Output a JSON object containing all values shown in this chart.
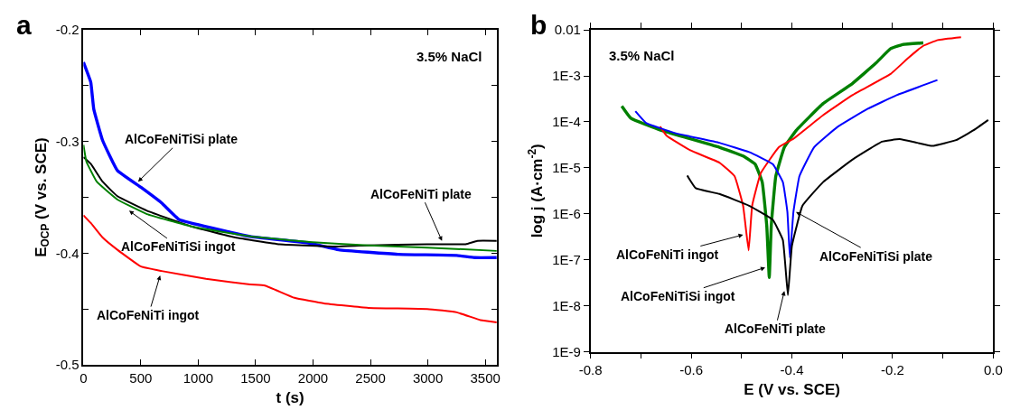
{
  "chart_data": [
    {
      "type": "line",
      "title": "a",
      "xlabel": "t (s)",
      "ylabel": "E$_{OCP}$ (V vs. SCE)",
      "xlim": [
        0,
        3600
      ],
      "xticks": [
        0,
        500,
        1000,
        1500,
        2000,
        2500,
        3000,
        3500
      ],
      "ylim": [
        -0.5,
        -0.2
      ],
      "yticks": [
        -0.5,
        {
          "value": -0.45,
          "label": null
        },
        -0.4,
        {
          "value": -0.35,
          "label": null
        },
        -0.3,
        {
          "value": -0.25,
          "label": null
        },
        -0.2
      ],
      "series": [
        {
          "color": "#0000ff",
          "x": [
            0,
            64,
            90,
            167,
            296,
            501,
            681,
            835,
            1144,
            1452,
            1967,
            2224,
            2738,
            3252,
            3406,
            3600
          ],
          "values": [
            -0.229,
            -0.247,
            -0.271,
            -0.299,
            -0.326,
            -0.341,
            -0.355,
            -0.37,
            -0.378,
            -0.385,
            -0.391,
            -0.397,
            -0.401,
            -0.402,
            -0.404,
            -0.404
          ]
        },
        {
          "color": "#000000",
          "x": [
            0,
            64,
            167,
            296,
            553,
            938,
            1324,
            1710,
            2224,
            2481,
            2995,
            3329,
            3432,
            3600
          ],
          "values": [
            -0.314,
            -0.32,
            -0.336,
            -0.349,
            -0.362,
            -0.376,
            -0.386,
            -0.392,
            -0.394,
            -0.393,
            -0.392,
            -0.392,
            -0.389,
            -0.389
          ]
        },
        {
          "color": "#008000",
          "x": [
            0,
            26,
            116,
            296,
            553,
            938,
            1452,
            1967,
            2481,
            2995,
            3600
          ],
          "values": [
            -0.303,
            -0.318,
            -0.336,
            -0.352,
            -0.365,
            -0.376,
            -0.385,
            -0.39,
            -0.393,
            -0.395,
            -0.398
          ]
        },
        {
          "color": "#ff0000",
          "x": [
            0,
            64,
            167,
            296,
            501,
            681,
            1067,
            1452,
            1581,
            1838,
            2095,
            2481,
            2995,
            3252,
            3458,
            3600
          ],
          "values": [
            -0.366,
            -0.373,
            -0.386,
            -0.397,
            -0.412,
            -0.416,
            -0.423,
            -0.428,
            -0.429,
            -0.44,
            -0.445,
            -0.449,
            -0.45,
            -0.453,
            -0.46,
            -0.462
          ]
        }
      ],
      "annotations": [
        "3.5% NaCl",
        {
          "text": "AlCoFeNiTiSi plate",
          "x": 476,
          "y": -0.336
        },
        {
          "text": "AlCoFeNiTi plate",
          "x": 3123,
          "y": -0.389
        },
        {
          "text": "AlCoFeNiTiSi ingot",
          "x": 398,
          "y": -0.362
        },
        {
          "text": "AlCoFeNiTi ingot",
          "x": 668,
          "y": -0.42
        }
      ]
    },
    {
      "type": "line",
      "title": "b",
      "xlabel": "E (V vs. SCE)",
      "ylabel": "log j (A·cm$^{-2}$)",
      "log": "y",
      "xlim": [
        -0.8,
        0
      ],
      "xticks": [
        -0.8,
        {
          "value": -0.7,
          "label": null
        },
        -0.6,
        {
          "value": -0.5,
          "label": null
        },
        -0.4,
        {
          "value": -0.3,
          "label": null
        },
        -0.2,
        {
          "value": -0.1,
          "label": null
        },
        {
          "value": 0,
          "label": "0.0"
        }
      ],
      "ylim": [
        1e-09,
        0.01
      ],
      "yticks": [
        {
          "value": 1e-09,
          "label": "1E-9"
        },
        {
          "value": 1e-08,
          "label": "1E-8"
        },
        {
          "value": 1e-07,
          "label": "1E-7"
        },
        {
          "value": 1e-06,
          "label": "1E-6"
        },
        {
          "value": 1e-05,
          "label": "1E-5"
        },
        {
          "value": 0.0001,
          "label": "1E-4"
        },
        {
          "value": 0.001,
          "label": "1E-3"
        },
        0.01
      ],
      "series": [
        {
          "color": "#008000",
          "x": [
            -0.738,
            -0.72,
            -0.661,
            -0.602,
            -0.544,
            -0.497,
            -0.473,
            -0.459,
            -0.45,
            -0.445,
            -0.441,
            -0.432,
            -0.415,
            -0.391,
            -0.338,
            -0.28,
            -0.233,
            -0.204,
            -0.18,
            -0.139
          ],
          "values": [
            0.00022,
            0.00012,
            6.6e-05,
            4.3e-05,
            2.8e-05,
            1.8e-05,
            1.2e-05,
            4.9e-06,
            5.5e-07,
            4.1e-08,
            5.5e-07,
            6.6e-06,
            2.8e-05,
            6.6e-05,
            0.00025,
            0.00068,
            0.0019,
            0.0039,
            0.0048,
            0.0052
          ]
        },
        {
          "color": "#ff0000",
          "x": [
            -0.662,
            -0.649,
            -0.602,
            -0.544,
            -0.514,
            -0.497,
            -0.486,
            -0.479,
            -0.462,
            -0.426,
            -0.397,
            -0.338,
            -0.28,
            -0.204,
            -0.168,
            -0.139,
            -0.11,
            -0.064
          ],
          "values": [
            7.9e-05,
            5e-05,
            2.4e-05,
            1.3e-05,
            6.6e-06,
            1.5e-06,
            1.6e-07,
            1.5e-06,
            7.6e-06,
            2.8e-05,
            4.3e-05,
            0.00014,
            0.00038,
            0.0011,
            0.0025,
            0.0045,
            0.006,
            0.0069
          ]
        },
        {
          "color": "#0000ff",
          "x": [
            -0.711,
            -0.69,
            -0.632,
            -0.544,
            -0.485,
            -0.438,
            -0.418,
            -0.409,
            -0.404,
            -0.397,
            -0.385,
            -0.356,
            -0.309,
            -0.25,
            -0.192,
            -0.111
          ],
          "values": [
            0.00017,
            9.5e-05,
            5.7e-05,
            3.5e-05,
            2.2e-05,
            1.2e-05,
            4.9e-06,
            1.1e-06,
            1.1e-07,
            1.1e-06,
            6.6e-06,
            2.8e-05,
            7.8e-05,
            0.00019,
            0.00038,
            0.00081
          ]
        },
        {
          "color": "#000000",
          "x": [
            -0.608,
            -0.591,
            -0.544,
            -0.485,
            -0.438,
            -0.418,
            -0.408,
            -0.4,
            -0.379,
            -0.338,
            -0.28,
            -0.221,
            -0.186,
            -0.151,
            -0.121,
            -0.074,
            -0.039,
            -0.01
          ],
          "values": [
            6.8e-06,
            3.6e-06,
            2.7e-06,
            1.5e-06,
            7.4e-07,
            2.7e-07,
            1.7e-08,
            2e-07,
            1.5e-06,
            4.9e-06,
            1.5e-05,
            3.7e-05,
            4.2e-05,
            3.5e-05,
            3e-05,
            4e-05,
            6.6e-05,
            0.00011
          ]
        }
      ],
      "annotations": [
        "3.5% NaCl",
        {
          "text": "AlCoFeNiTi ingot",
          "x": -0.497,
          "y": 3.5e-07
        },
        {
          "text": "AlCoFeNiTiSi ingot",
          "x": -0.453,
          "y": 6.8e-08
        },
        {
          "text": "AlCoFeNiTi plate",
          "x": -0.415,
          "y": 2.1e-08
        },
        {
          "text": "AlCoFeNiTiSi plate",
          "x": -0.392,
          "y": 1.1e-06
        }
      ]
    }
  ]
}
